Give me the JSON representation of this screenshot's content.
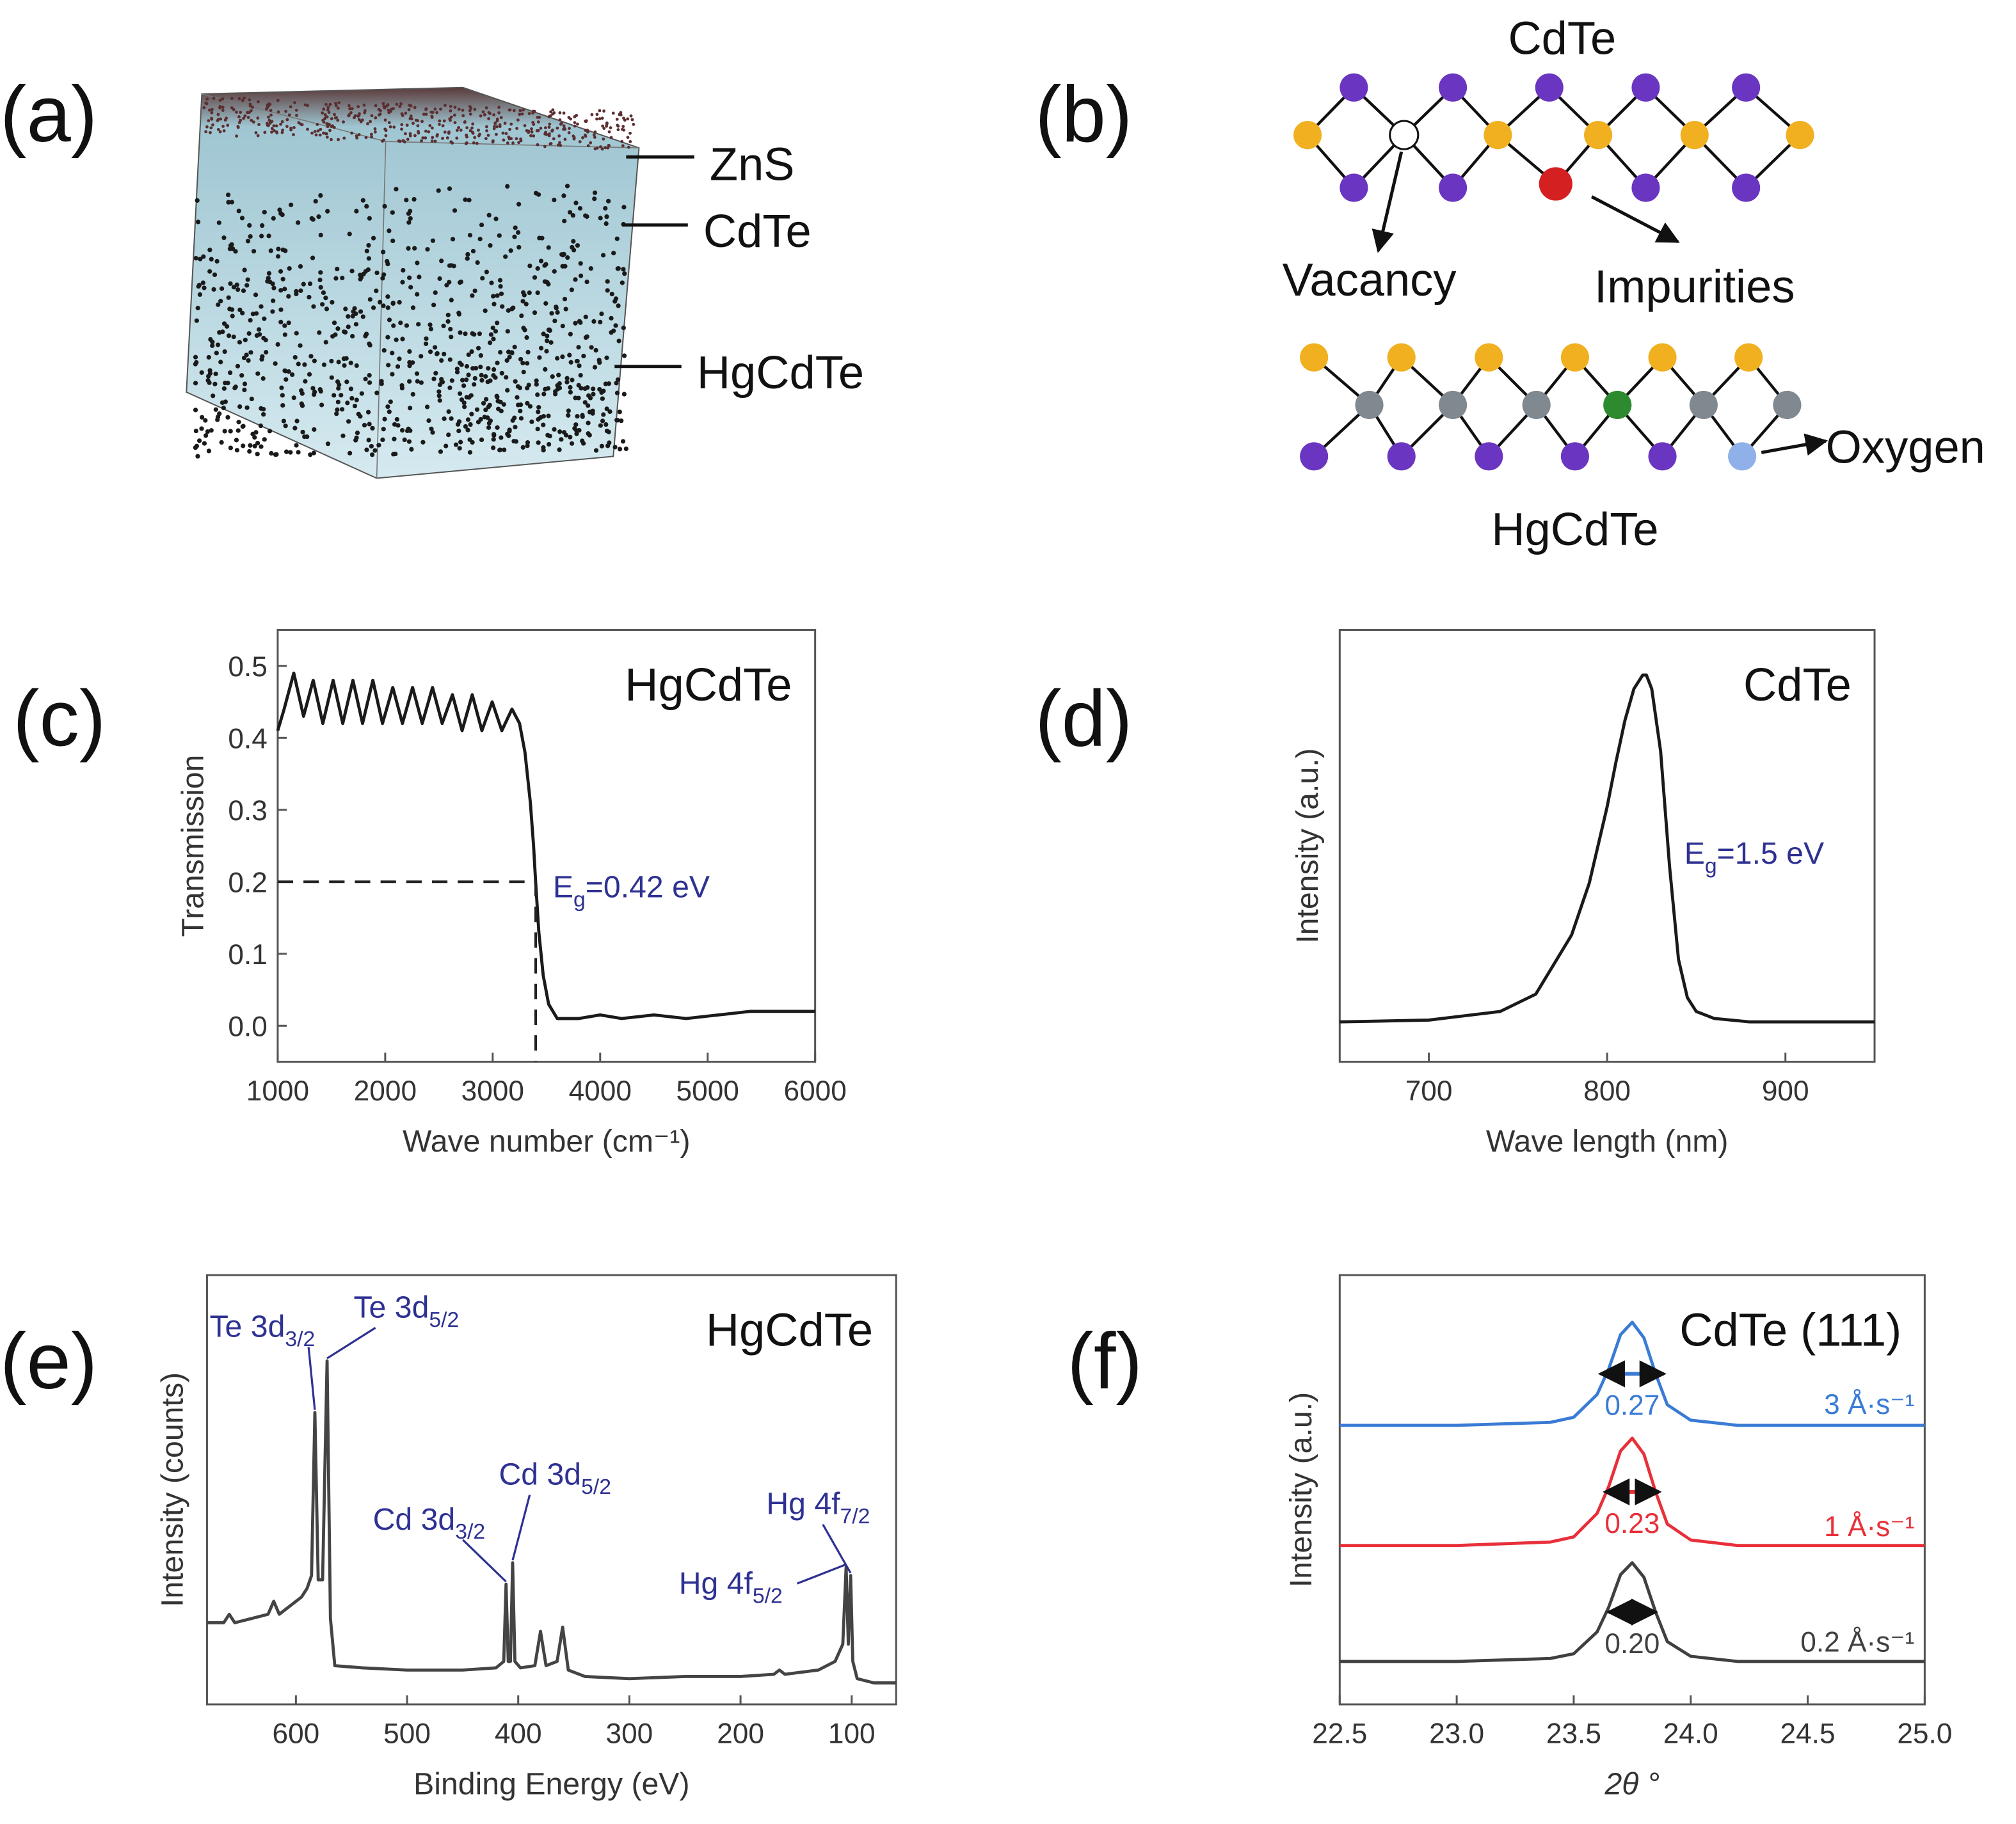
{
  "panels": [
    "(a)",
    "(b)",
    "(c)",
    "(d)",
    "(e)",
    "(f)"
  ],
  "panel_a": {
    "labels": [
      "ZnS",
      "CdTe",
      "HgCdTe"
    ]
  },
  "panel_b": {
    "top_title": "CdTe",
    "vacancy": "Vacancy",
    "impurities": "Impurities",
    "bottom_title": "HgCdTe",
    "oxygen": "Oxygen"
  },
  "chart_data": [
    {
      "type": "line",
      "annotation": "HgCdTe",
      "label_parts": [
        "E",
        "g",
        "=0.42 eV"
      ],
      "label_color": "#2e3192",
      "xlabel": "Wave number (cm⁻¹)",
      "ylabel": "Transmission",
      "color": "#1a1a1a",
      "x": [
        1000,
        1060,
        1150,
        1240,
        1330,
        1420,
        1515,
        1605,
        1700,
        1790,
        1885,
        1975,
        2070,
        2160,
        2255,
        2345,
        2440,
        2530,
        2625,
        2715,
        2810,
        2900,
        2995,
        3085,
        3180,
        3250,
        3300,
        3350,
        3380,
        3400,
        3430,
        3470,
        3520,
        3600,
        3800,
        4000,
        4200,
        4500,
        4800,
        5100,
        5400,
        5700,
        6000
      ],
      "values": [
        0.41,
        0.44,
        0.49,
        0.43,
        0.48,
        0.42,
        0.48,
        0.42,
        0.48,
        0.42,
        0.48,
        0.42,
        0.47,
        0.42,
        0.47,
        0.42,
        0.47,
        0.42,
        0.46,
        0.41,
        0.46,
        0.41,
        0.45,
        0.41,
        0.44,
        0.42,
        0.38,
        0.31,
        0.25,
        0.2,
        0.13,
        0.07,
        0.03,
        0.01,
        0.01,
        0.015,
        0.01,
        0.015,
        0.01,
        0.015,
        0.02,
        0.02,
        0.02
      ],
      "xlim": [
        1000,
        6000
      ],
      "xticks": [
        1000,
        2000,
        3000,
        4000,
        5000,
        6000
      ],
      "ylim": [
        -0.05,
        0.55
      ],
      "yticks": [
        {
          "value": 0,
          "label": "0.0"
        },
        0.1,
        0.2,
        0.3,
        0.4,
        0.5
      ],
      "guide": {
        "x": 3400,
        "y": 0.2
      }
    },
    {
      "type": "line",
      "annotation": "CdTe",
      "label_parts": [
        "E",
        "g",
        "=1.5 eV"
      ],
      "label_color": "#2e3192",
      "xlabel": "Wave length (nm)",
      "ylabel": "Intensity (a.u.)",
      "color": "#1a1a1a",
      "x": [
        650,
        700,
        740,
        760,
        780,
        790,
        800,
        805,
        810,
        815,
        820,
        822,
        825,
        830,
        835,
        840,
        845,
        850,
        860,
        880,
        900,
        950
      ],
      "values": [
        0,
        0.005,
        0.03,
        0.08,
        0.25,
        0.4,
        0.62,
        0.75,
        0.87,
        0.96,
        1.0,
        1.0,
        0.96,
        0.78,
        0.45,
        0.18,
        0.07,
        0.03,
        0.01,
        0,
        0,
        0
      ],
      "xlim": [
        650,
        950
      ],
      "xticks": [
        700,
        800,
        900
      ],
      "ylim": [
        -0.115,
        1.13
      ]
    },
    {
      "type": "line",
      "annotation": "HgCdTe",
      "label_color": "#2e3192",
      "xlabel": "Binding Energy (eV)",
      "ylabel": "Intensity (counts)",
      "color": "#444444",
      "x": [
        680,
        665,
        660,
        655,
        625,
        620,
        615,
        595,
        590,
        586,
        583,
        580,
        576,
        572,
        569,
        565,
        540,
        500,
        450,
        420,
        413,
        411,
        409,
        407,
        405,
        403,
        398,
        385,
        380,
        375,
        365,
        360,
        355,
        340,
        300,
        250,
        200,
        170,
        165,
        160,
        130,
        115,
        108,
        105,
        103,
        101,
        99,
        95,
        80,
        60
      ],
      "values": [
        0.19,
        0.19,
        0.21,
        0.19,
        0.21,
        0.24,
        0.21,
        0.25,
        0.27,
        0.3,
        0.68,
        0.29,
        0.29,
        0.8,
        0.2,
        0.09,
        0.085,
        0.08,
        0.08,
        0.085,
        0.1,
        0.28,
        0.1,
        0.1,
        0.33,
        0.1,
        0.085,
        0.09,
        0.17,
        0.09,
        0.1,
        0.18,
        0.08,
        0.065,
        0.06,
        0.065,
        0.065,
        0.07,
        0.08,
        0.07,
        0.08,
        0.1,
        0.14,
        0.32,
        0.14,
        0.3,
        0.1,
        0.06,
        0.05,
        0.05
      ],
      "xlim": [
        680,
        60
      ],
      "xticks": [
        600,
        500,
        400,
        300,
        200,
        100
      ],
      "ylim": [
        0,
        1
      ],
      "peaks": [
        {
          "parts": [
            "Te 3d",
            "3/2"
          ],
          "x": 583,
          "y": 0.68
        },
        {
          "parts": [
            "Te 3d",
            "5/2"
          ],
          "x": 572,
          "y": 0.8
        },
        {
          "parts": [
            "Cd 3d",
            "3/2"
          ],
          "x": 411,
          "y": 0.28
        },
        {
          "parts": [
            "Cd 3d",
            "5/2"
          ],
          "x": 405,
          "y": 0.33
        },
        {
          "parts": [
            "Hg 4f",
            "5/2"
          ],
          "x": 105,
          "y": 0.32
        },
        {
          "parts": [
            "Hg 4f",
            "7/2"
          ],
          "x": 101,
          "y": 0.3
        }
      ]
    },
    {
      "type": "line",
      "annotation": "CdTe (111)",
      "xlabel": "2θ °",
      "ylabel": "Intensity (a.u.)",
      "x": [
        22.5,
        23.0,
        23.4,
        23.5,
        23.6,
        23.65,
        23.7,
        23.75,
        23.8,
        23.85,
        23.9,
        24.0,
        24.2,
        24.5,
        25.0
      ],
      "series": [
        {
          "name": "3 Å·s⁻¹",
          "color": "#3a7bd5",
          "values": [
            0.65,
            0.65,
            0.657,
            0.669,
            0.722,
            0.782,
            0.861,
            0.89,
            0.854,
            0.77,
            0.698,
            0.662,
            0.65,
            0.65,
            0.65
          ],
          "fwhm": 0.27,
          "fwhm_label": "0.27"
        },
        {
          "name": "1 Å·s⁻¹",
          "color": "#e8303a",
          "values": [
            0.37,
            0.37,
            0.378,
            0.39,
            0.445,
            0.508,
            0.59,
            0.62,
            0.583,
            0.495,
            0.42,
            0.383,
            0.37,
            0.37,
            0.37
          ],
          "fwhm": 0.23,
          "fwhm_label": "0.23"
        },
        {
          "name": "0.2 Å·s⁻¹",
          "color": "#404040",
          "values": [
            0.1,
            0.1,
            0.107,
            0.118,
            0.169,
            0.227,
            0.302,
            0.33,
            0.296,
            0.215,
            0.146,
            0.112,
            0.1,
            0.1,
            0.1
          ],
          "fwhm": 0.2,
          "fwhm_label": "0.20"
        }
      ],
      "peak_center": 23.75,
      "xlim": [
        22.5,
        25.0
      ],
      "xticks": [
        22.5,
        {
          "value": 23,
          "label": "23.0"
        },
        23.5,
        {
          "value": 24,
          "label": "24.0"
        },
        24.5,
        {
          "value": 25,
          "label": "25.0"
        }
      ],
      "ylim": [
        0,
        1
      ]
    }
  ]
}
